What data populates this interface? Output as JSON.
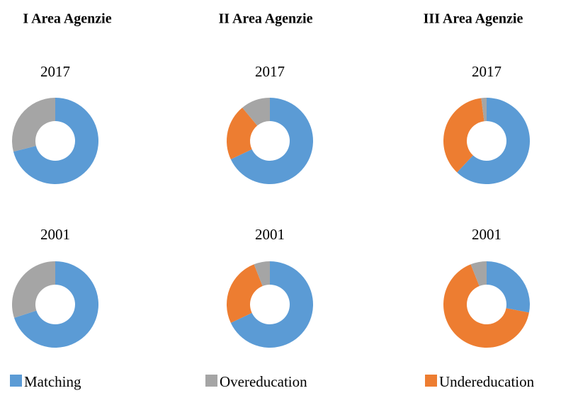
{
  "column_titles": [
    "I Area Agenzie",
    "II Area Agenzie",
    "III Area Agenzie"
  ],
  "chart_data": [
    {
      "type": "pie",
      "title": "2017",
      "categories": [
        "Matching",
        "Undereducation",
        "Overeducation"
      ],
      "values": [
        71,
        0,
        29
      ],
      "colors": [
        "#5b9bd5",
        "#ed7d31",
        "#a5a5a5"
      ]
    },
    {
      "type": "pie",
      "title": "2017",
      "categories": [
        "Matching",
        "Undereducation",
        "Overeducation"
      ],
      "values": [
        68,
        21,
        11
      ],
      "colors": [
        "#5b9bd5",
        "#ed7d31",
        "#a5a5a5"
      ]
    },
    {
      "type": "pie",
      "title": "2017",
      "categories": [
        "Matching",
        "Undereducation",
        "Overeducation"
      ],
      "values": [
        62,
        36,
        2
      ],
      "colors": [
        "#5b9bd5",
        "#ed7d31",
        "#a5a5a5"
      ]
    },
    {
      "type": "pie",
      "title": "2001",
      "categories": [
        "Matching",
        "Undereducation",
        "Overeducation"
      ],
      "values": [
        70,
        0,
        30
      ],
      "colors": [
        "#5b9bd5",
        "#ed7d31",
        "#a5a5a5"
      ]
    },
    {
      "type": "pie",
      "title": "2001",
      "categories": [
        "Matching",
        "Undereducation",
        "Overeducation"
      ],
      "values": [
        68,
        26,
        6
      ],
      "colors": [
        "#5b9bd5",
        "#ed7d31",
        "#a5a5a5"
      ]
    },
    {
      "type": "pie",
      "title": "2001",
      "categories": [
        "Matching",
        "Undereducation",
        "Overeducation"
      ],
      "values": [
        28,
        66,
        6
      ],
      "colors": [
        "#5b9bd5",
        "#ed7d31",
        "#a5a5a5"
      ]
    }
  ]
}
